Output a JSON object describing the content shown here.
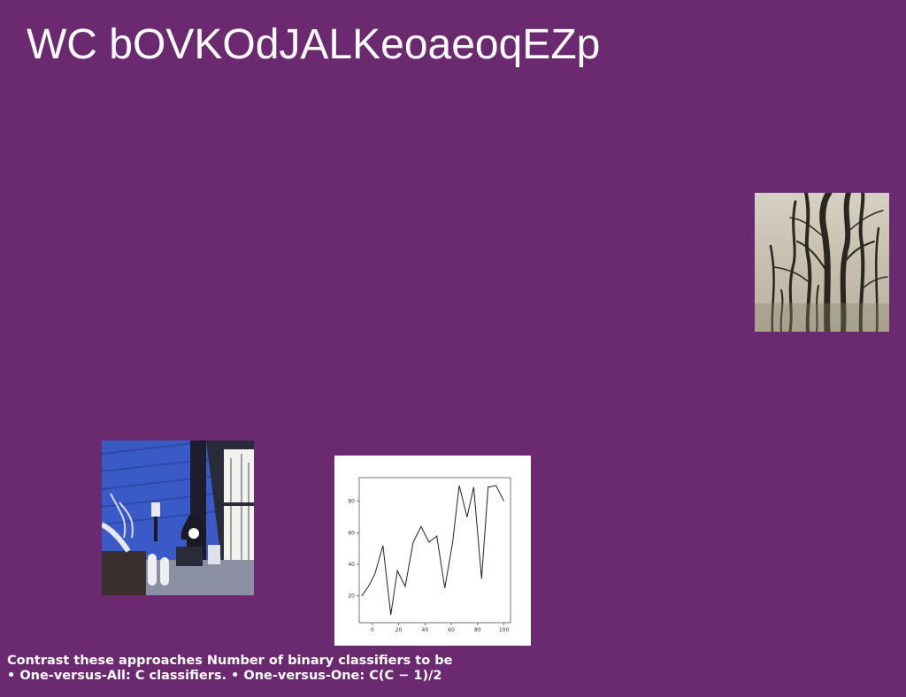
{
  "slide": {
    "title": "WC bOVKOdJALKeoaeoqEZp",
    "background_color": "#6b2a6f",
    "caption_line1": "Contrast these approaches Number of binary classifiers to be",
    "caption_line2": "• One-versus-All: C classifiers. • One-versus-One: C(C − 1)/2"
  },
  "images": {
    "trees": {
      "icon": "bare-trees-photo"
    },
    "room": {
      "icon": "cabin-interior-photo"
    }
  },
  "chart_data": {
    "type": "line",
    "title": "",
    "xlabel": "",
    "ylabel": "",
    "xlim": [
      -10,
      105
    ],
    "ylim": [
      3,
      95
    ],
    "grid": false,
    "x_ticks": [
      0,
      20,
      40,
      60,
      80,
      100
    ],
    "y_ticks": [
      20,
      40,
      60,
      80
    ],
    "series": [
      {
        "color": "#222222",
        "x": [
          -8,
          -3,
          2,
          8,
          14,
          19,
          25,
          31,
          37,
          43,
          49,
          55,
          61,
          66,
          72,
          77,
          83,
          88,
          94,
          100
        ],
        "y": [
          20,
          26,
          34,
          52,
          8,
          36,
          26,
          54,
          64,
          54,
          58,
          25,
          54,
          90,
          70,
          89,
          31,
          89,
          90,
          80
        ]
      }
    ]
  }
}
